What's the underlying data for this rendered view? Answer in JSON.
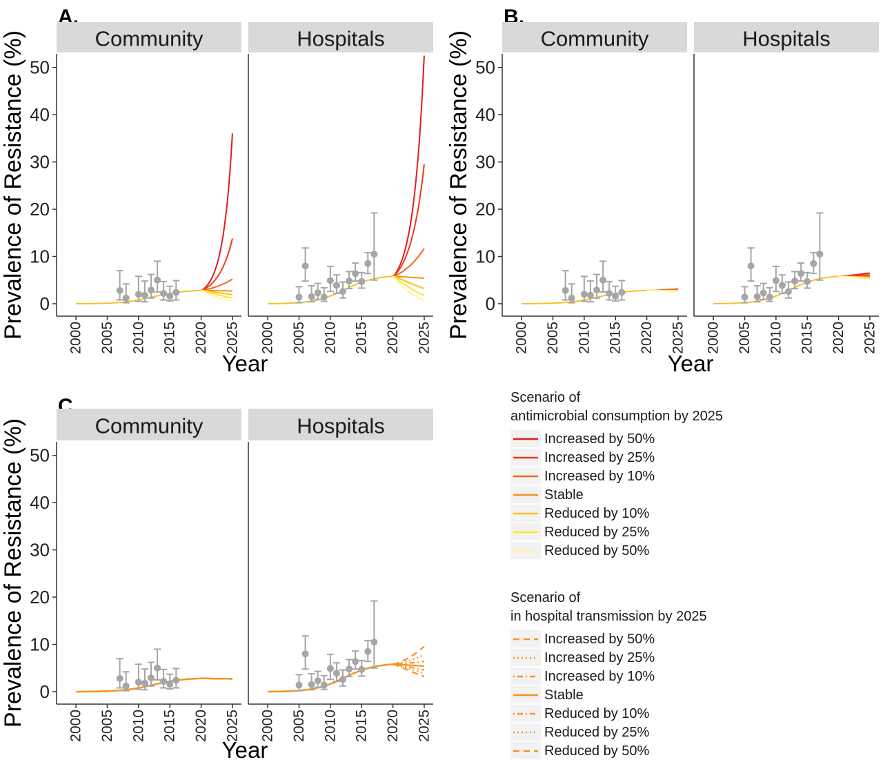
{
  "figure": {
    "panel_labels": [
      "A.",
      "B.",
      "C."
    ],
    "facet_labels": [
      "Community",
      "Hospitals"
    ],
    "ylabel": "Prevalence of Resistance (%)",
    "xlabel": "Year",
    "xticks": [
      "2000",
      "2005",
      "2010",
      "2015",
      "2020",
      "2025"
    ],
    "yticks": [
      "0",
      "10",
      "20",
      "30",
      "40",
      "50"
    ]
  },
  "legend_consumption": {
    "title_line1": "Scenario of",
    "title_line2": " antimicrobial consumption by 2025",
    "items": [
      {
        "label": "Increased by 50%",
        "color": "#e41a1c"
      },
      {
        "label": "Increased by 25%",
        "color": "#ee3b1a"
      },
      {
        "label": "Increased by 10%",
        "color": "#f4651f"
      },
      {
        "label": "Stable",
        "color": "#f7931e"
      },
      {
        "label": "Reduced by 10%",
        "color": "#fbbf24"
      },
      {
        "label": "Reduced by 25%",
        "color": "#f6ea1e"
      },
      {
        "label": "Reduced by 50%",
        "color": "#fff59d"
      }
    ]
  },
  "legend_transmission": {
    "title_line1": "Scenario of",
    "title_line2": " in hospital transmission by 2025",
    "color": "#f7931e",
    "items": [
      {
        "label": "Increased by 50%",
        "dash": "long"
      },
      {
        "label": "Increased by 25%",
        "dash": "dot"
      },
      {
        "label": "Increased by 10%",
        "dash": "dotdash"
      },
      {
        "label": "Stable",
        "dash": "solid"
      },
      {
        "label": "Reduced by 10%",
        "dash": "dotdash"
      },
      {
        "label": "Reduced by 25%",
        "dash": "dot"
      },
      {
        "label": "Reduced by 50%",
        "dash": "long"
      }
    ]
  },
  "chart_data": [
    {
      "panel": "A.",
      "type": "line",
      "xlim": [
        1998,
        2026
      ],
      "ylim": [
        0,
        52
      ],
      "facets": [
        {
          "facet": "Community",
          "observed": [
            {
              "x": 2007,
              "y": 2.8,
              "lo": 0.8,
              "hi": 7.0
            },
            {
              "x": 2008,
              "y": 1.2,
              "lo": 0.2,
              "hi": 4.2
            },
            {
              "x": 2010,
              "y": 2.0,
              "lo": 0.5,
              "hi": 5.8
            },
            {
              "x": 2011,
              "y": 1.8,
              "lo": 0.4,
              "hi": 4.8
            },
            {
              "x": 2012,
              "y": 2.9,
              "lo": 1.2,
              "hi": 6.2
            },
            {
              "x": 2013,
              "y": 5.0,
              "lo": 2.5,
              "hi": 9.0
            },
            {
              "x": 2014,
              "y": 2.2,
              "lo": 0.8,
              "hi": 4.7
            },
            {
              "x": 2015,
              "y": 1.6,
              "lo": 0.6,
              "hi": 3.7
            },
            {
              "x": 2016,
              "y": 2.4,
              "lo": 0.8,
              "hi": 4.9
            }
          ],
          "baseline_2020": 2.8,
          "scenarios_2025": [
            36.0,
            13.8,
            5.2,
            2.7,
            1.9,
            1.2,
            0.6
          ]
        },
        {
          "facet": "Hospitals",
          "observed": [
            {
              "x": 2005,
              "y": 1.4,
              "lo": 0.2,
              "hi": 3.6
            },
            {
              "x": 2006,
              "y": 8.0,
              "lo": 4.8,
              "hi": 11.8
            },
            {
              "x": 2007,
              "y": 1.5,
              "lo": 0.4,
              "hi": 3.8
            },
            {
              "x": 2008,
              "y": 2.3,
              "lo": 0.9,
              "hi": 4.3
            },
            {
              "x": 2009,
              "y": 1.4,
              "lo": 0.5,
              "hi": 3.4
            },
            {
              "x": 2010,
              "y": 4.9,
              "lo": 2.6,
              "hi": 7.9
            },
            {
              "x": 2011,
              "y": 3.9,
              "lo": 2.2,
              "hi": 6.1
            },
            {
              "x": 2012,
              "y": 2.6,
              "lo": 1.2,
              "hi": 4.6
            },
            {
              "x": 2013,
              "y": 4.8,
              "lo": 3.2,
              "hi": 6.8
            },
            {
              "x": 2014,
              "y": 6.4,
              "lo": 4.8,
              "hi": 8.6
            },
            {
              "x": 2015,
              "y": 4.7,
              "lo": 3.3,
              "hi": 6.6
            },
            {
              "x": 2016,
              "y": 8.5,
              "lo": 6.4,
              "hi": 10.8
            },
            {
              "x": 2017,
              "y": 10.5,
              "lo": 5.0,
              "hi": 19.2
            }
          ],
          "baseline_2020": 5.8,
          "scenarios_2025": [
            52.5,
            29.5,
            11.7,
            5.4,
            3.2,
            1.8,
            0.8
          ]
        }
      ]
    },
    {
      "panel": "B.",
      "type": "line",
      "xlim": [
        1998,
        2026
      ],
      "ylim": [
        0,
        52
      ],
      "facets": [
        {
          "facet": "Community",
          "baseline_2020": 2.8,
          "scenarios_2025": [
            3.1,
            3.0,
            2.9,
            2.8,
            2.8,
            2.7,
            2.7
          ]
        },
        {
          "facet": "Hospitals",
          "baseline_2020": 5.8,
          "scenarios_2025": [
            6.5,
            6.1,
            5.8,
            5.6,
            5.5,
            5.4,
            5.3
          ]
        }
      ]
    },
    {
      "panel": "C.",
      "type": "line",
      "xlim": [
        1998,
        2026
      ],
      "ylim": [
        0,
        52
      ],
      "facets": [
        {
          "facet": "Community",
          "baseline_2020": 2.8,
          "scenarios_2025": [
            2.7,
            2.7,
            2.7,
            2.7,
            2.7,
            2.7,
            2.7
          ]
        },
        {
          "facet": "Hospitals",
          "baseline_2020": 5.8,
          "scenarios_2025": [
            9.6,
            7.8,
            6.4,
            5.4,
            4.6,
            3.9,
            3.2
          ]
        }
      ]
    }
  ]
}
